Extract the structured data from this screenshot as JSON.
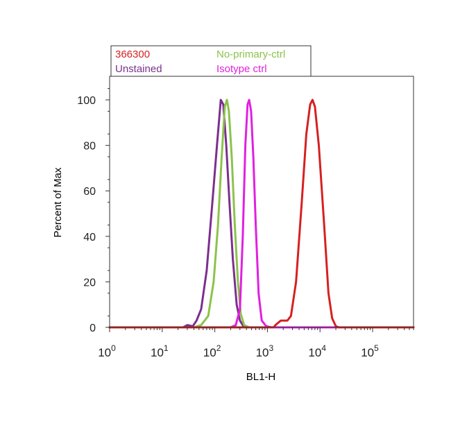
{
  "chart_data": {
    "type": "line",
    "title": "",
    "xlabel": "BL1-H",
    "ylabel": "Percent of Max",
    "x_scale": "log",
    "xlim": [
      1,
      600000
    ],
    "ylim": [
      0,
      110
    ],
    "x_ticks": [
      {
        "value": 1,
        "base": "10",
        "exp": "0"
      },
      {
        "value": 10,
        "base": "10",
        "exp": "1"
      },
      {
        "value": 100,
        "base": "10",
        "exp": "2"
      },
      {
        "value": 1000,
        "base": "10",
        "exp": "3"
      },
      {
        "value": 10000,
        "base": "10",
        "exp": "4"
      },
      {
        "value": 100000,
        "base": "10",
        "exp": "5"
      }
    ],
    "y_ticks": [
      {
        "value": 0,
        "label": "0"
      },
      {
        "value": 20,
        "label": "20"
      },
      {
        "value": 40,
        "label": "40"
      },
      {
        "value": 60,
        "label": "60"
      },
      {
        "value": 80,
        "label": "80"
      },
      {
        "value": 100,
        "label": "100"
      }
    ],
    "grid": false,
    "legend_placement": "top, above plot",
    "series": [
      {
        "name": "Unstained",
        "color": "#7b2f8e",
        "points": [
          [
            1,
            0
          ],
          [
            25,
            0
          ],
          [
            30,
            1
          ],
          [
            38,
            0.5
          ],
          [
            45,
            3
          ],
          [
            55,
            8
          ],
          [
            70,
            25
          ],
          [
            90,
            55
          ],
          [
            110,
            80
          ],
          [
            130,
            100
          ],
          [
            145,
            98
          ],
          [
            165,
            80
          ],
          [
            190,
            55
          ],
          [
            220,
            30
          ],
          [
            260,
            10
          ],
          [
            300,
            3
          ],
          [
            350,
            0.5
          ],
          [
            420,
            0
          ],
          [
            600000,
            0
          ]
        ]
      },
      {
        "name": "No-primary-ctrl",
        "color": "#8bc34a",
        "points": [
          [
            1,
            0
          ],
          [
            40,
            0
          ],
          [
            55,
            1
          ],
          [
            75,
            5
          ],
          [
            95,
            20
          ],
          [
            115,
            45
          ],
          [
            135,
            75
          ],
          [
            155,
            97
          ],
          [
            170,
            100
          ],
          [
            185,
            95
          ],
          [
            210,
            75
          ],
          [
            240,
            45
          ],
          [
            275,
            20
          ],
          [
            310,
            6
          ],
          [
            360,
            1
          ],
          [
            450,
            0
          ],
          [
            600000,
            0
          ]
        ]
      },
      {
        "name": "Isotype ctrl",
        "color": "#e020e0",
        "points": [
          [
            1,
            0
          ],
          [
            200,
            0
          ],
          [
            250,
            1
          ],
          [
            300,
            8
          ],
          [
            340,
            40
          ],
          [
            380,
            80
          ],
          [
            420,
            98
          ],
          [
            450,
            100
          ],
          [
            490,
            95
          ],
          [
            540,
            75
          ],
          [
            600,
            45
          ],
          [
            680,
            15
          ],
          [
            780,
            3
          ],
          [
            950,
            0.5
          ],
          [
            1200,
            0
          ],
          [
            600000,
            0
          ]
        ]
      },
      {
        "name": "366300",
        "color": "#d62020",
        "points": [
          [
            1,
            0
          ],
          [
            1300,
            0
          ],
          [
            1500,
            1.5
          ],
          [
            1800,
            3
          ],
          [
            2400,
            3
          ],
          [
            2800,
            5
          ],
          [
            3500,
            20
          ],
          [
            4500,
            55
          ],
          [
            5500,
            85
          ],
          [
            6500,
            98
          ],
          [
            7200,
            100
          ],
          [
            8000,
            97
          ],
          [
            9500,
            80
          ],
          [
            12000,
            45
          ],
          [
            14500,
            15
          ],
          [
            17000,
            4
          ],
          [
            20000,
            0.5
          ],
          [
            23000,
            0
          ],
          [
            600000,
            0
          ]
        ]
      }
    ],
    "legend": [
      {
        "label": "366300",
        "color": "#d62020"
      },
      {
        "label": "No-primary-ctrl",
        "color": "#8bc34a"
      },
      {
        "label": "Unstained",
        "color": "#7b2f8e"
      },
      {
        "label": "Isotype ctrl",
        "color": "#e020e0"
      }
    ]
  }
}
